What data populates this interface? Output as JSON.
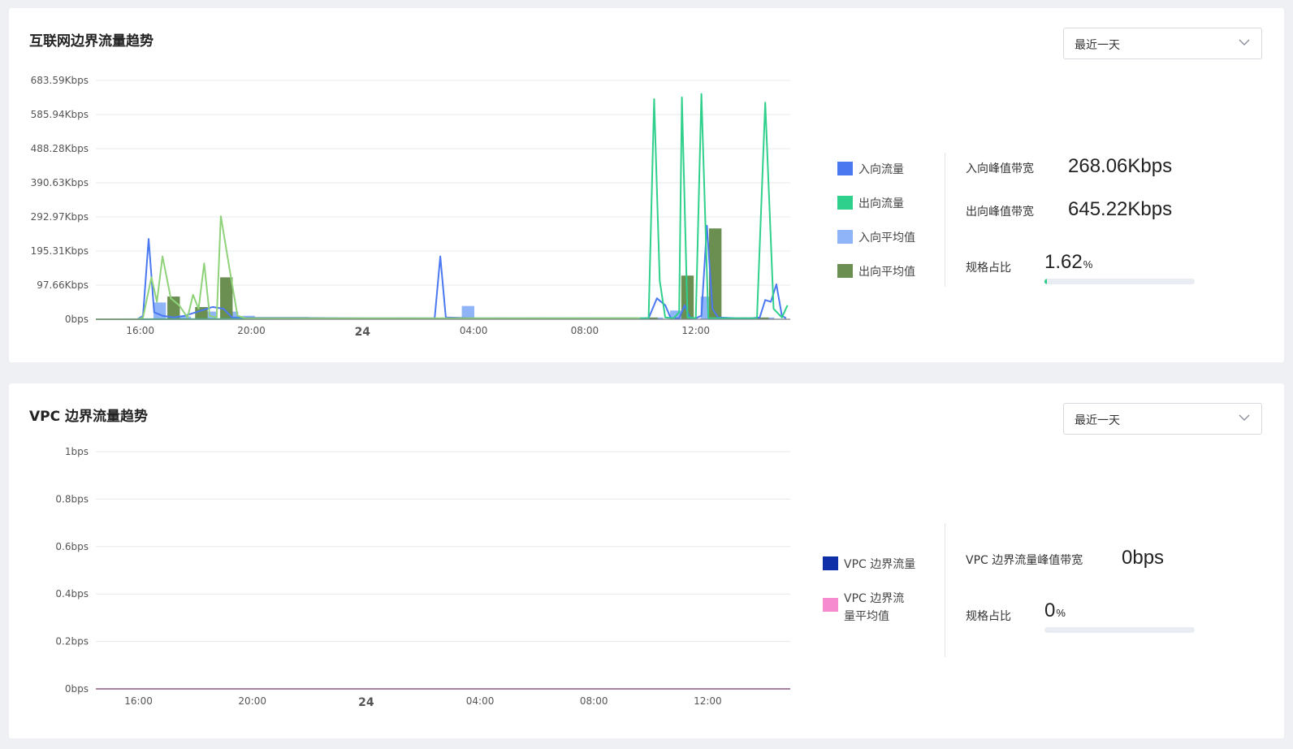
{
  "panels": [
    {
      "title": "互联网边界流量趋势",
      "range": "最近一天",
      "legend": [
        {
          "label": "入向流量",
          "color": "#4a78f0"
        },
        {
          "label": "出向流量",
          "color": "#2fd08c"
        },
        {
          "label": "入向平均值",
          "color": "#8fb4f7"
        },
        {
          "label": "出向平均值",
          "color": "#6b8f51"
        }
      ],
      "stats": {
        "in_peak_label": "入向峰值带宽",
        "in_peak_value": "268.06Kbps",
        "out_peak_label": "出向峰值带宽",
        "out_peak_value": "645.22Kbps",
        "ratio_label": "规格占比",
        "ratio_value": "1.62",
        "ratio_unit": "%",
        "ratio_fraction": 0.0162
      }
    },
    {
      "title": "VPC 边界流量趋势",
      "range": "最近一天",
      "legend": [
        {
          "label": "VPC 边界流量",
          "color": "#0f2fa8"
        },
        {
          "label": "VPC 边界流量平均值",
          "color": "#f78bd0"
        }
      ],
      "stats": {
        "peak_label": "VPC 边界流量峰值带宽",
        "peak_value": "0bps",
        "ratio_label": "规格占比",
        "ratio_value": "0",
        "ratio_unit": "%",
        "ratio_fraction": 0
      }
    }
  ],
  "chart_data": [
    {
      "type": "line",
      "title": "互联网边界流量趋势",
      "y_unit": "Kbps",
      "ylim": [
        0,
        683.59
      ],
      "y_ticks": [
        0,
        97.66,
        195.31,
        292.97,
        390.63,
        488.28,
        585.94,
        683.59
      ],
      "y_tick_labels": [
        "0bps",
        "97.66Kbps",
        "195.31Kbps",
        "292.97Kbps",
        "390.63Kbps",
        "488.28Kbps",
        "585.94Kbps",
        "683.59Kbps"
      ],
      "x_unit": "hours since 23rd 00:00",
      "xlim": [
        14.4,
        39.4
      ],
      "x_ticks": [
        16,
        20,
        24,
        28,
        32,
        36
      ],
      "x_tick_labels": [
        "16:00",
        "20:00",
        "24",
        "04:00",
        "08:00",
        "12:00"
      ],
      "x_tick_bold": [
        false,
        false,
        true,
        false,
        false,
        false
      ],
      "grid": true,
      "legend_position": "right",
      "series": [
        {
          "name": "入向流量",
          "kind": "line",
          "color": "#4a78f0",
          "points": [
            [
              14.4,
              0
            ],
            [
              15.9,
              0
            ],
            [
              16.1,
              10
            ],
            [
              16.3,
              230
            ],
            [
              16.5,
              20
            ],
            [
              16.8,
              10
            ],
            [
              17.2,
              5
            ],
            [
              17.6,
              10
            ],
            [
              18.0,
              20
            ],
            [
              18.6,
              35
            ],
            [
              19.0,
              30
            ],
            [
              19.3,
              5
            ],
            [
              20.0,
              4
            ],
            [
              22.0,
              4
            ],
            [
              24.0,
              3
            ],
            [
              26.0,
              3
            ],
            [
              26.6,
              3
            ],
            [
              26.8,
              180
            ],
            [
              27.0,
              5
            ],
            [
              28.0,
              3
            ],
            [
              30.0,
              3
            ],
            [
              32.0,
              3
            ],
            [
              34.3,
              3
            ],
            [
              34.6,
              60
            ],
            [
              34.9,
              40
            ],
            [
              35.1,
              3
            ],
            [
              35.4,
              3
            ],
            [
              35.6,
              40
            ],
            [
              35.8,
              3
            ],
            [
              36.0,
              3
            ],
            [
              36.2,
              10
            ],
            [
              36.4,
              268
            ],
            [
              36.6,
              30
            ],
            [
              36.8,
              5
            ],
            [
              37.5,
              3
            ],
            [
              38.0,
              3
            ],
            [
              38.3,
              5
            ],
            [
              38.5,
              55
            ],
            [
              38.7,
              50
            ],
            [
              38.9,
              100
            ],
            [
              39.1,
              10
            ],
            [
              39.25,
              3
            ]
          ]
        },
        {
          "name": "出向流量",
          "kind": "line",
          "color": "#2fd08c",
          "points": [
            [
              14.4,
              0
            ],
            [
              34.0,
              3
            ],
            [
              34.3,
              3
            ],
            [
              34.5,
              630
            ],
            [
              34.7,
              110
            ],
            [
              34.9,
              5
            ],
            [
              35.2,
              3
            ],
            [
              35.4,
              20
            ],
            [
              35.5,
              635
            ],
            [
              35.7,
              5
            ],
            [
              36.0,
              3
            ],
            [
              36.2,
              645
            ],
            [
              36.45,
              3
            ],
            [
              36.8,
              3
            ],
            [
              38.2,
              3
            ],
            [
              38.5,
              620
            ],
            [
              38.8,
              30
            ],
            [
              39.1,
              5
            ],
            [
              39.3,
              40
            ]
          ]
        },
        {
          "name": "出向流量(浅)",
          "kind": "line",
          "color": "#8fd27a",
          "points": [
            [
              14.4,
              0
            ],
            [
              15.9,
              0
            ],
            [
              16.1,
              5
            ],
            [
              16.4,
              120
            ],
            [
              16.6,
              50
            ],
            [
              16.8,
              180
            ],
            [
              17.1,
              60
            ],
            [
              17.4,
              40
            ],
            [
              17.7,
              5
            ],
            [
              17.9,
              70
            ],
            [
              18.1,
              30
            ],
            [
              18.3,
              160
            ],
            [
              18.5,
              10
            ],
            [
              18.75,
              5
            ],
            [
              18.9,
              295
            ],
            [
              19.2,
              150
            ],
            [
              19.5,
              10
            ],
            [
              19.8,
              3
            ],
            [
              21.0,
              3
            ],
            [
              24.0,
              3
            ],
            [
              28.0,
              3
            ],
            [
              32.0,
              3
            ],
            [
              34.0,
              3
            ]
          ]
        },
        {
          "name": "入向平均值",
          "kind": "bar",
          "color": "#8fb4f7",
          "width": 0.45,
          "bars": [
            [
              16.7,
              48
            ],
            [
              17.6,
              8
            ],
            [
              18.5,
              22
            ],
            [
              19.3,
              22
            ],
            [
              19.9,
              10
            ],
            [
              21.0,
              5
            ],
            [
              22.5,
              5
            ],
            [
              24.0,
              4
            ],
            [
              25.5,
              5
            ],
            [
              27.0,
              5
            ],
            [
              27.8,
              38
            ],
            [
              29.0,
              5
            ],
            [
              30.5,
              5
            ],
            [
              32.0,
              5
            ],
            [
              33.5,
              5
            ],
            [
              34.6,
              5
            ],
            [
              35.3,
              25
            ],
            [
              36.4,
              65
            ],
            [
              37.6,
              5
            ],
            [
              38.6,
              5
            ]
          ]
        },
        {
          "name": "出向平均值",
          "kind": "bar",
          "color": "#6b8f51",
          "width": 0.45,
          "bars": [
            [
              17.2,
              65
            ],
            [
              18.2,
              35
            ],
            [
              19.1,
              120
            ],
            [
              20.5,
              5
            ],
            [
              22.0,
              4
            ],
            [
              23.5,
              4
            ],
            [
              25.0,
              4
            ],
            [
              26.5,
              4
            ],
            [
              28.5,
              4
            ],
            [
              30.0,
              4
            ],
            [
              31.5,
              4
            ],
            [
              33.0,
              4
            ],
            [
              34.4,
              5
            ],
            [
              35.7,
              125
            ],
            [
              36.7,
              260
            ],
            [
              37.8,
              5
            ],
            [
              38.4,
              5
            ]
          ]
        }
      ]
    },
    {
      "type": "line",
      "title": "VPC 边界流量趋势",
      "y_unit": "bps",
      "ylim": [
        0,
        1
      ],
      "y_ticks": [
        0,
        0.2,
        0.4,
        0.6,
        0.8,
        1
      ],
      "y_tick_labels": [
        "0bps",
        "0.2bps",
        "0.4bps",
        "0.6bps",
        "0.8bps",
        "1bps"
      ],
      "x_unit": "hours since 23rd 00:00",
      "xlim": [
        14.5,
        38.9
      ],
      "x_ticks": [
        16,
        20,
        24,
        28,
        32,
        36
      ],
      "x_tick_labels": [
        "16:00",
        "20:00",
        "24",
        "04:00",
        "08:00",
        "12:00"
      ],
      "x_tick_bold": [
        false,
        false,
        true,
        false,
        false,
        false
      ],
      "grid": true,
      "legend_position": "right",
      "series": [
        {
          "name": "VPC 边界流量",
          "kind": "line",
          "color": "#0f2fa8",
          "points": [
            [
              14.5,
              0
            ],
            [
              38.9,
              0
            ]
          ]
        },
        {
          "name": "VPC 边界流量平均值",
          "kind": "line",
          "color": "#f78bd0",
          "points": [
            [
              14.5,
              0
            ],
            [
              38.9,
              0
            ]
          ]
        }
      ]
    }
  ]
}
